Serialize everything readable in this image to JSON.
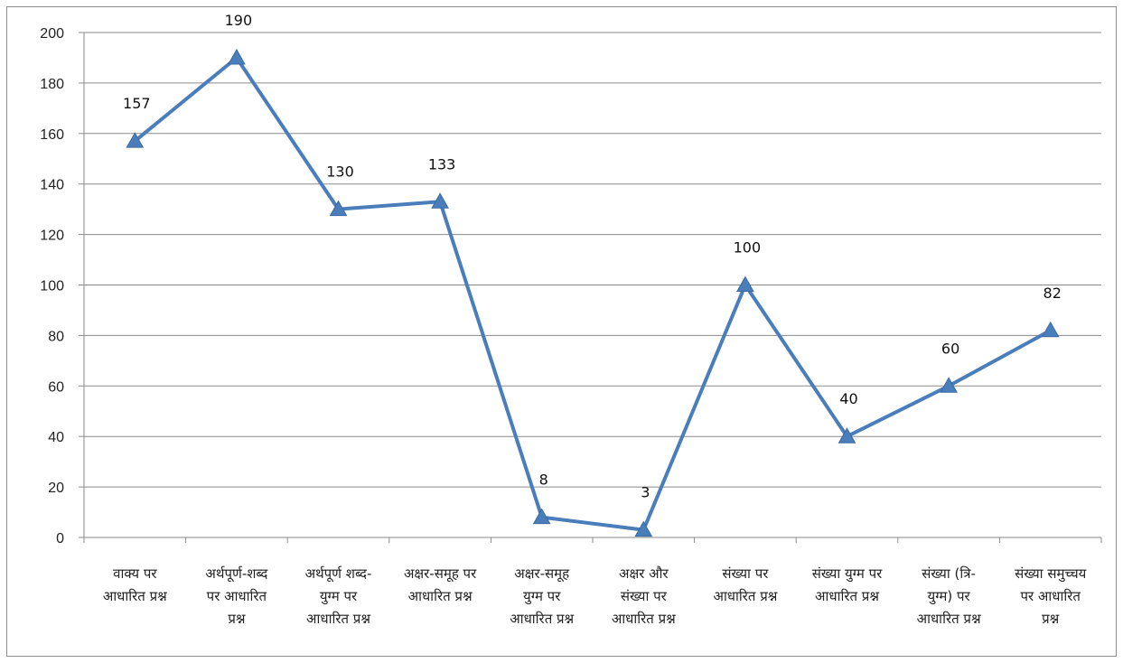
{
  "chart_data": {
    "type": "line",
    "title": "",
    "xlabel": "",
    "ylabel": "",
    "ylim": [
      0,
      200
    ],
    "yticks": [
      0,
      20,
      40,
      60,
      80,
      100,
      120,
      140,
      160,
      180,
      200
    ],
    "grid": true,
    "legend": "none",
    "marker": "triangle",
    "color": "#4a7ebb",
    "categories": [
      [
        "वाक्य पर",
        "आधारित प्रश्न"
      ],
      [
        "अर्थपूर्ण-शब्द",
        "पर आधारित",
        "प्रश्न"
      ],
      [
        "अर्थपूर्ण शब्द-",
        "युग्म पर",
        "आधारित प्रश्न"
      ],
      [
        "अक्षर-समूह पर",
        "आधारित प्रश्न"
      ],
      [
        "अक्षर-समूह",
        "युग्म पर",
        "आधारित प्रश्न"
      ],
      [
        "अक्षर और",
        "संख्या पर",
        "आधारित प्रश्न"
      ],
      [
        "संख्या पर",
        "आधारित प्रश्न"
      ],
      [
        "संख्या युग्म पर",
        "आधारित प्रश्न"
      ],
      [
        "संख्या (त्रि-",
        "युग्म) पर",
        "आधारित प्रश्न"
      ],
      [
        "संख्या समुच्चय",
        "पर आधारित",
        "प्रश्न"
      ]
    ],
    "series": [
      {
        "values": [
          157,
          190,
          130,
          133,
          8,
          3,
          100,
          40,
          60,
          82
        ]
      }
    ]
  }
}
